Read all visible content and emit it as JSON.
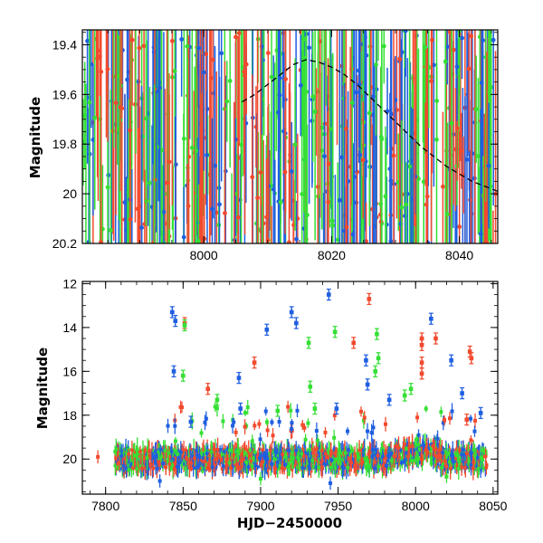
{
  "chart_data": [
    {
      "type": "scatter",
      "xlabel": "",
      "ylabel": "Magnitude",
      "xlim": [
        7981,
        8046
      ],
      "ylim": [
        20.2,
        19.34
      ],
      "y_inverted": true,
      "x_ticks": [
        8000,
        8020,
        8040
      ],
      "x_tick_labels": [
        "8000",
        "8020",
        "8040"
      ],
      "y_ticks": [
        19.4,
        19.6,
        19.8,
        20,
        20.2
      ],
      "y_tick_labels": [
        "19.4",
        "19.6",
        "19.8",
        "20",
        "20.2"
      ],
      "grid": false,
      "legend": "none",
      "colors": [
        "#1f5fe0",
        "#35e035",
        "#f24a2e"
      ],
      "model_curve": {
        "style": "dashed",
        "color": "#000000",
        "x": [
          8006,
          8008,
          8010,
          8012,
          8014,
          8016,
          8018,
          8020,
          8022,
          8024,
          8026,
          8028,
          8030,
          8032,
          8034,
          8036,
          8038,
          8040,
          8042,
          8044,
          8046
        ],
        "y": [
          19.63,
          19.6,
          19.56,
          19.52,
          19.48,
          19.46,
          19.47,
          19.49,
          19.52,
          19.56,
          19.61,
          19.66,
          19.71,
          19.76,
          19.81,
          19.85,
          19.89,
          19.92,
          19.95,
          19.97,
          19.99
        ]
      }
    },
    {
      "type": "scatter",
      "xlabel": "HJD−2450000",
      "ylabel": "Magnitude",
      "xlim": [
        7785,
        8053
      ],
      "ylim": [
        21.6,
        11.9
      ],
      "y_inverted": true,
      "x_ticks": [
        7800,
        7850,
        7900,
        7950,
        8000,
        8050
      ],
      "x_tick_labels": [
        "7800",
        "7850",
        "7900",
        "7950",
        "8000",
        "8050"
      ],
      "y_ticks": [
        12,
        14,
        16,
        18,
        20
      ],
      "y_tick_labels": [
        "12",
        "14",
        "16",
        "18",
        "20"
      ],
      "grid": false,
      "legend": "none",
      "colors": [
        "#1f5fe0",
        "#35e035",
        "#f24a2e"
      ],
      "baseline_magnitude": 20.0,
      "outliers": [
        {
          "x": 7843,
          "y": 13.3,
          "color": "#1f5fe0"
        },
        {
          "x": 7845,
          "y": 13.7,
          "color": "#1f5fe0"
        },
        {
          "x": 7844,
          "y": 16.0,
          "color": "#1f5fe0"
        },
        {
          "x": 7851,
          "y": 13.8,
          "color": "#f24a2e"
        },
        {
          "x": 7851,
          "y": 13.9,
          "color": "#35e035"
        },
        {
          "x": 7850,
          "y": 16.2,
          "color": "#35e035"
        },
        {
          "x": 7855,
          "y": 18.3,
          "color": "#1f5fe0"
        },
        {
          "x": 7866,
          "y": 16.8,
          "color": "#f24a2e"
        },
        {
          "x": 7872,
          "y": 17.3,
          "color": "#35e035"
        },
        {
          "x": 7886,
          "y": 16.3,
          "color": "#1f5fe0"
        },
        {
          "x": 7887,
          "y": 17.7,
          "color": "#1f5fe0"
        },
        {
          "x": 7896,
          "y": 15.6,
          "color": "#f24a2e"
        },
        {
          "x": 7904,
          "y": 14.1,
          "color": "#1f5fe0"
        },
        {
          "x": 7911,
          "y": 17.8,
          "color": "#35e035"
        },
        {
          "x": 7920,
          "y": 13.3,
          "color": "#1f5fe0"
        },
        {
          "x": 7923,
          "y": 13.8,
          "color": "#1f5fe0"
        },
        {
          "x": 7931,
          "y": 14.7,
          "color": "#35e035"
        },
        {
          "x": 7932,
          "y": 16.7,
          "color": "#35e035"
        },
        {
          "x": 7935,
          "y": 17.7,
          "color": "#35e035"
        },
        {
          "x": 7944,
          "y": 12.5,
          "color": "#1f5fe0"
        },
        {
          "x": 7948,
          "y": 14.2,
          "color": "#35e035"
        },
        {
          "x": 7949,
          "y": 17.7,
          "color": "#1f5fe0"
        },
        {
          "x": 7960,
          "y": 14.7,
          "color": "#f24a2e"
        },
        {
          "x": 7968,
          "y": 15.5,
          "color": "#1f5fe0"
        },
        {
          "x": 7969,
          "y": 16.6,
          "color": "#1f5fe0"
        },
        {
          "x": 7970,
          "y": 12.7,
          "color": "#f24a2e"
        },
        {
          "x": 7974,
          "y": 16.0,
          "color": "#35e035"
        },
        {
          "x": 7975,
          "y": 14.3,
          "color": "#35e035"
        },
        {
          "x": 7976,
          "y": 15.4,
          "color": "#35e035"
        },
        {
          "x": 7983,
          "y": 17.3,
          "color": "#1f5fe0"
        },
        {
          "x": 7993,
          "y": 17.1,
          "color": "#35e035"
        },
        {
          "x": 7997,
          "y": 16.8,
          "color": "#35e035"
        },
        {
          "x": 8004,
          "y": 14.5,
          "color": "#f24a2e"
        },
        {
          "x": 8004,
          "y": 14.8,
          "color": "#f24a2e"
        },
        {
          "x": 8004,
          "y": 15.6,
          "color": "#f24a2e"
        },
        {
          "x": 8004,
          "y": 16.1,
          "color": "#f24a2e"
        },
        {
          "x": 8010,
          "y": 13.6,
          "color": "#1f5fe0"
        },
        {
          "x": 8013,
          "y": 14.5,
          "color": "#f24a2e"
        },
        {
          "x": 8023,
          "y": 15.5,
          "color": "#1f5fe0"
        },
        {
          "x": 8030,
          "y": 17.0,
          "color": "#1f5fe0"
        },
        {
          "x": 8033,
          "y": 18.2,
          "color": "#f24a2e"
        },
        {
          "x": 8035,
          "y": 15.1,
          "color": "#f24a2e"
        },
        {
          "x": 8036,
          "y": 15.4,
          "color": "#f24a2e"
        },
        {
          "x": 8042,
          "y": 17.9,
          "color": "#1f5fe0"
        }
      ]
    }
  ]
}
